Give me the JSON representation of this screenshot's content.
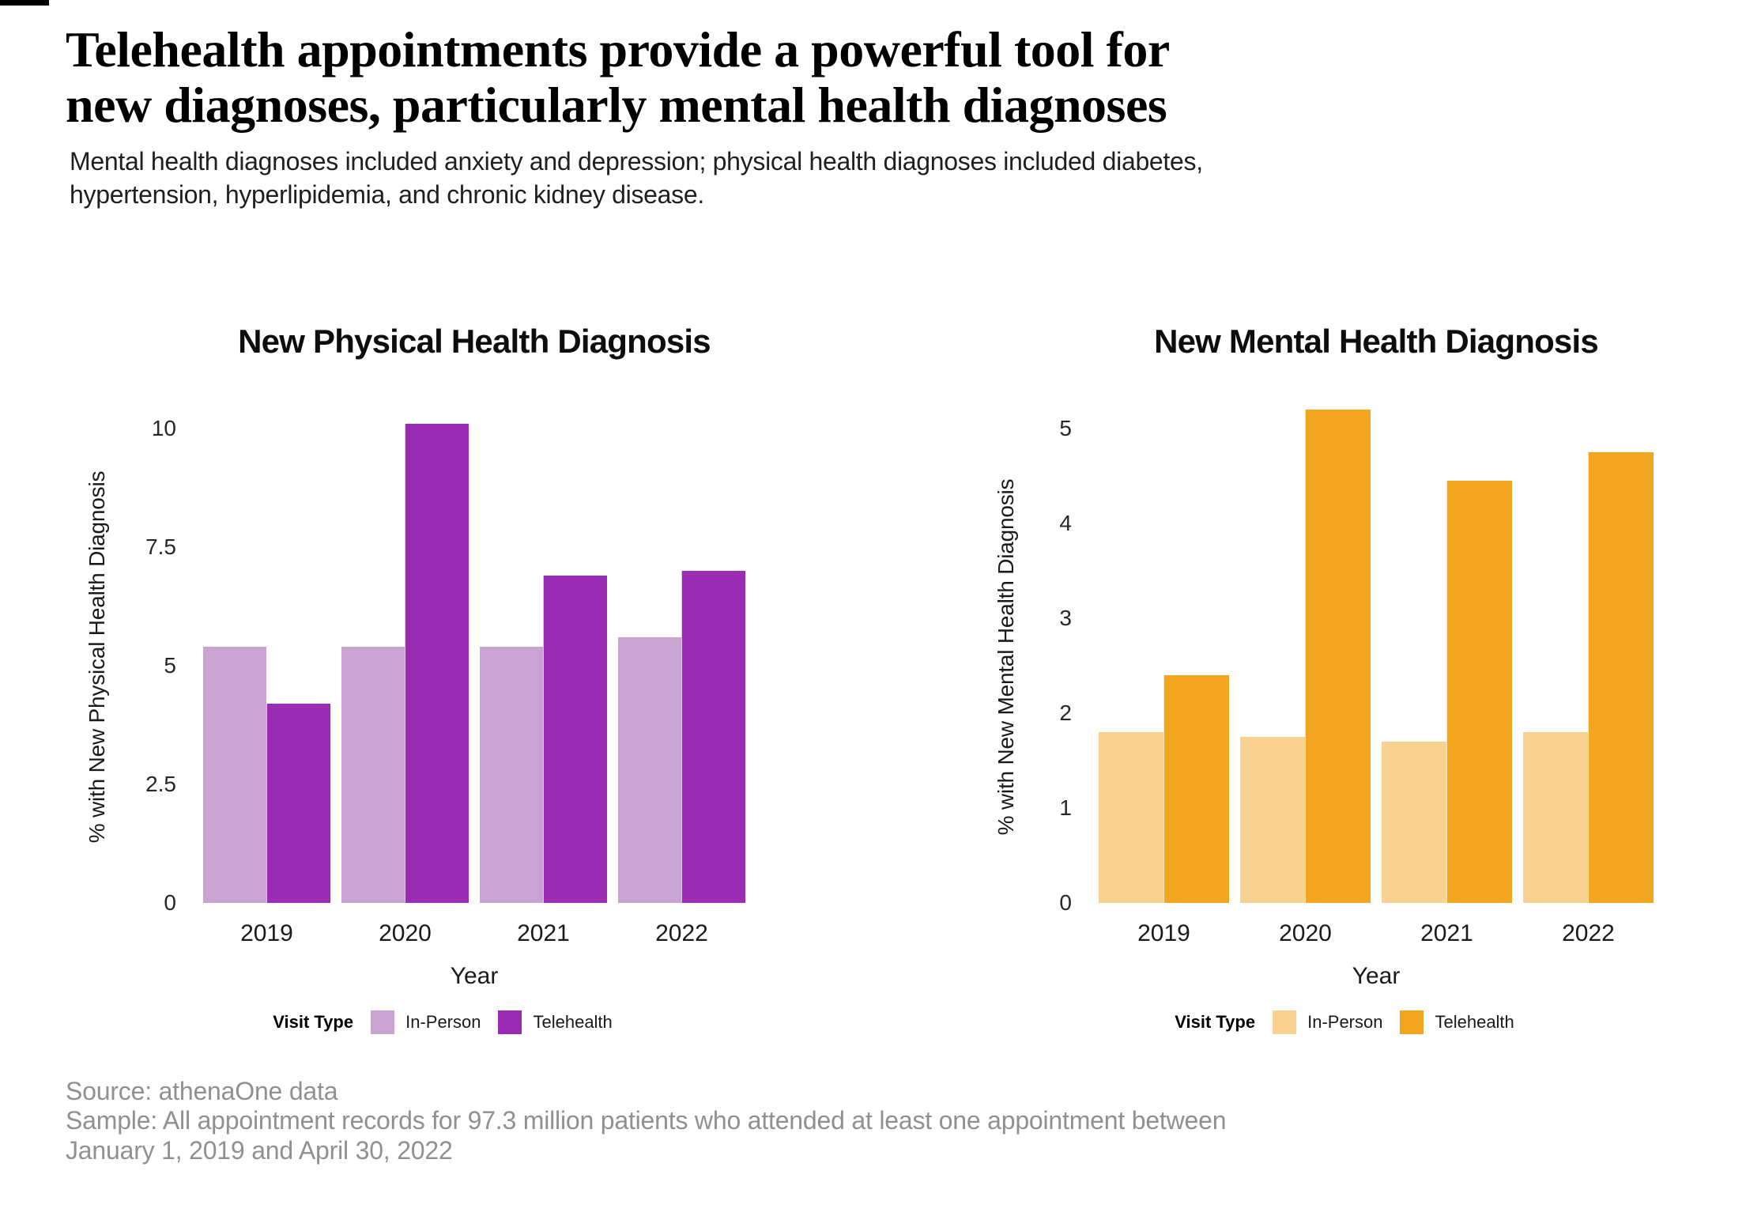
{
  "header": {
    "title_lines": [
      "Telehealth appointments provide a powerful tool for",
      "new diagnoses, particularly mental health diagnoses"
    ],
    "subtitle_lines": [
      "Mental health diagnoses included anxiety and depression; physical health diagnoses included diabetes,",
      "hypertension, hyperlipidemia, and chronic kidney disease."
    ]
  },
  "legend": {
    "label": "Visit Type",
    "items": [
      "In-Person",
      "Telehealth"
    ]
  },
  "colors": {
    "purple_light": "#C9A3D1",
    "purple_dark": "#9A2BB3",
    "orange_light": "#F9D190",
    "orange_dark": "#F2A51F",
    "source_text": "#909090"
  },
  "chart_data": [
    {
      "type": "bar",
      "title": "New Physical Health Diagnosis",
      "xlabel": "Year",
      "ylabel": "% with New Physical Health Diagnosis",
      "categories": [
        "2019",
        "2020",
        "2021",
        "2022"
      ],
      "series": [
        {
          "name": "In-Person",
          "values": [
            5.4,
            5.4,
            5.4,
            5.6
          ]
        },
        {
          "name": "Telehealth",
          "values": [
            4.2,
            10.1,
            6.9,
            7.0
          ]
        }
      ],
      "colors": [
        "#C9A3D1",
        "#9A2BB3"
      ],
      "yticks": [
        0,
        2.5,
        5,
        7.5,
        10
      ],
      "ylim": [
        0,
        10.37
      ],
      "grid": false,
      "legend_position": "bottom"
    },
    {
      "type": "bar",
      "title": "New Mental Health Diagnosis",
      "xlabel": "Year",
      "ylabel": "% with New Mental Health Diagnosis",
      "categories": [
        "2019",
        "2020",
        "2021",
        "2022"
      ],
      "series": [
        {
          "name": "In-Person",
          "values": [
            1.8,
            1.75,
            1.7,
            1.8
          ]
        },
        {
          "name": "Telehealth",
          "values": [
            2.4,
            5.2,
            4.45,
            4.75
          ]
        }
      ],
      "colors": [
        "#F9D190",
        "#F2A51F"
      ],
      "yticks": [
        0,
        1,
        2,
        3,
        4,
        5
      ],
      "ylim": [
        0,
        5.25
      ],
      "grid": false,
      "legend_position": "bottom"
    }
  ],
  "footer": {
    "source_lines": [
      "Source: athenaOne data",
      "Sample: All appointment records for 97.3 million patients who attended at least one appointment between",
      "January 1, 2019 and April 30, 2022"
    ]
  }
}
